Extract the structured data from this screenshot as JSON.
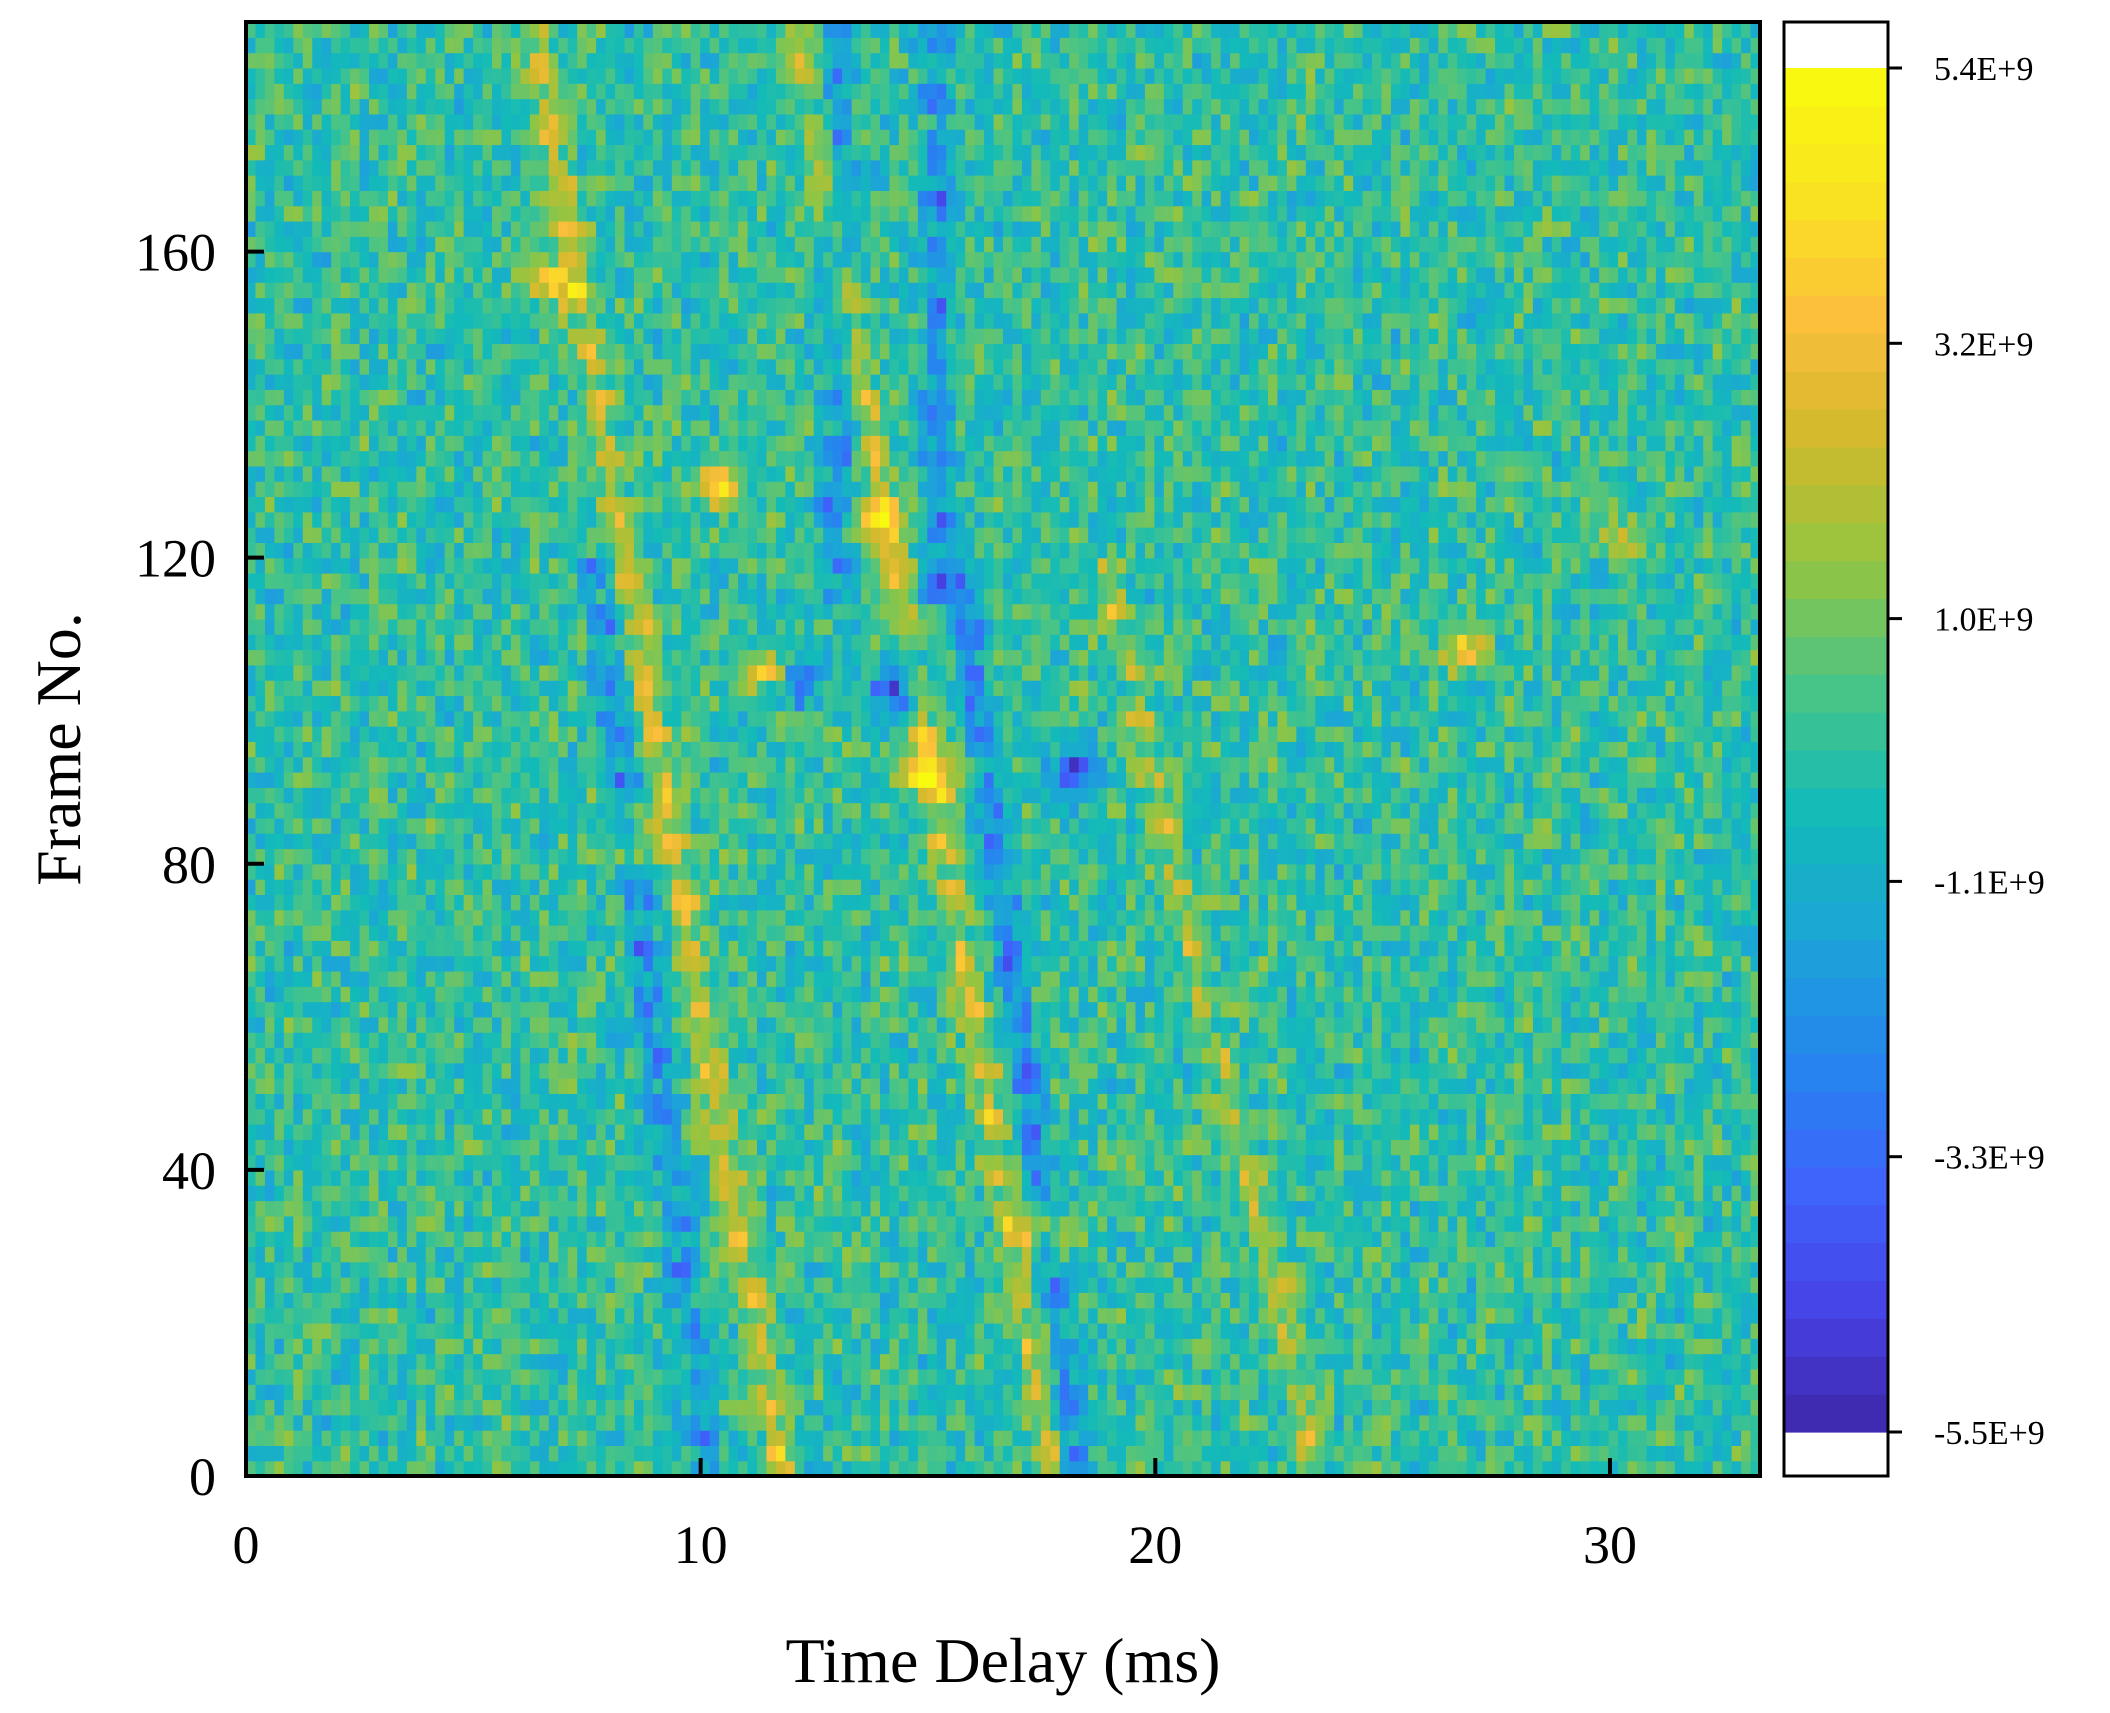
{
  "chart_data": {
    "type": "heatmap",
    "title": "",
    "xlabel": "Time Delay (ms)",
    "ylabel": "Frame No.",
    "xlim": [
      0,
      33.3
    ],
    "ylim": [
      0,
      190
    ],
    "x_ticks": [
      0,
      10,
      20,
      30
    ],
    "y_ticks": [
      0,
      40,
      80,
      120,
      160
    ],
    "grid": false,
    "colorbar": {
      "min": -5500000000.0,
      "max": 5400000000.0,
      "tick_values": [
        5400000000.0,
        3200000000.0,
        1000000000.0,
        -1100000000.0,
        -3300000000.0,
        -5500000000.0
      ],
      "tick_labels": [
        "5.4E+9",
        "3.2E+9",
        "1.0E+9",
        "-1.1E+9",
        "-3.3E+9",
        "-5.5E+9"
      ],
      "colormap": [
        "#3e26a8",
        "#4743e7",
        "#3e64fc",
        "#2586ee",
        "#1ca5d7",
        "#13bbb8",
        "#49c486",
        "#93c541",
        "#d1b92c",
        "#fcbf3b",
        "#f9e51f",
        "#f9fb0e"
      ]
    },
    "bands": [
      {
        "x_at_frame0": 11.8,
        "slope_ms_per_frame": -0.029,
        "amplitude": 3200000000.0,
        "frame_range": [
          0,
          190
        ]
      },
      {
        "x_at_frame0": 10.2,
        "slope_ms_per_frame": -0.021,
        "amplitude": -2800000000.0,
        "frame_range": [
          0,
          120
        ]
      },
      {
        "x_at_frame0": 17.8,
        "slope_ms_per_frame": -0.03,
        "amplitude": 3000000000.0,
        "frame_range": [
          0,
          190
        ]
      },
      {
        "x_at_frame0": 18.3,
        "slope_ms_per_frame": -0.022,
        "amplitude": -3400000000.0,
        "frame_range": [
          0,
          120
        ]
      },
      {
        "x_at_frame0": 23.6,
        "slope_ms_per_frame": -0.04,
        "amplitude": 2200000000.0,
        "frame_range": [
          0,
          120
        ]
      },
      {
        "x_at_frame0": 13.0,
        "slope_ms_per_frame": 0.0,
        "amplitude": -3000000000.0,
        "frame_range": [
          115,
          190
        ]
      },
      {
        "x_at_frame0": 15.2,
        "slope_ms_per_frame": 0.0,
        "amplitude": -3000000000.0,
        "frame_range": [
          115,
          190
        ]
      }
    ],
    "hotspots": [
      {
        "x": 11.5,
        "frame": 105,
        "value": 4600000000.0
      },
      {
        "x": 15.0,
        "frame": 92,
        "value": 4500000000.0
      },
      {
        "x": 10.4,
        "frame": 130,
        "value": 4000000000.0
      },
      {
        "x": 14.0,
        "frame": 125,
        "value": 3800000000.0
      },
      {
        "x": 12.0,
        "frame": 104,
        "value": -3800000000.0
      },
      {
        "x": 14.3,
        "frame": 103,
        "value": -4000000000.0
      },
      {
        "x": 18.2,
        "frame": 92,
        "value": -3600000000.0
      },
      {
        "x": 6.7,
        "frame": 156,
        "value": 3600000000.0
      },
      {
        "x": 8.5,
        "frame": 83,
        "value": 3600000000.0
      },
      {
        "x": 17.6,
        "frame": 32,
        "value": 3500000000.0
      },
      {
        "x": 26.8,
        "frame": 108,
        "value": 3000000000.0
      },
      {
        "x": 30.2,
        "frame": 123,
        "value": 2800000000.0
      }
    ]
  }
}
